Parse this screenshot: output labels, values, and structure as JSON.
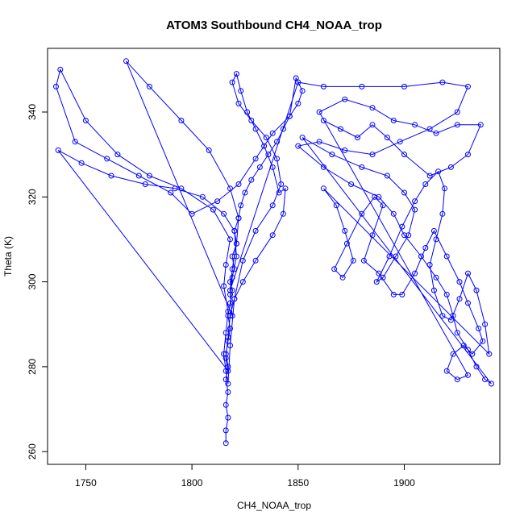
{
  "chart_data": {
    "type": "line",
    "title": "ATOM3 Southbound CH4_NOAA_trop",
    "xlabel": "CH4_NOAA_trop",
    "ylabel": "Theta (K)",
    "xlim": [
      1732,
      1945
    ],
    "ylim": [
      257,
      355
    ],
    "xticks": [
      1750,
      1800,
      1850,
      1900
    ],
    "yticks": [
      260,
      280,
      300,
      320,
      340
    ],
    "grid": false,
    "markers": "open-circle",
    "series_color": "#0000ff",
    "series": [
      {
        "points": [
          [
            1816,
            262
          ],
          [
            1816,
            265
          ],
          [
            1817,
            268
          ],
          [
            1816,
            271
          ],
          [
            1817,
            274
          ],
          [
            1816,
            277
          ],
          [
            1817,
            280
          ],
          [
            1816,
            283
          ],
          [
            1817,
            286
          ],
          [
            1818,
            289
          ],
          [
            1817,
            292
          ],
          [
            1818,
            295
          ],
          [
            1819,
            298
          ],
          [
            1818,
            300
          ],
          [
            1820,
            303
          ],
          [
            1819,
            306
          ],
          [
            1821,
            309
          ],
          [
            1820,
            312
          ],
          [
            1822,
            315
          ],
          [
            1823,
            318
          ],
          [
            1825,
            321
          ],
          [
            1828,
            324
          ],
          [
            1832,
            327
          ],
          [
            1836,
            330
          ],
          [
            1840,
            333
          ],
          [
            1843,
            336
          ],
          [
            1846,
            339
          ],
          [
            1850,
            342
          ],
          [
            1852,
            345
          ],
          [
            1849,
            348
          ],
          [
            1846,
            339
          ],
          [
            1838,
            335
          ],
          [
            1830,
            329
          ],
          [
            1822,
            323
          ],
          [
            1812,
            319
          ],
          [
            1800,
            316
          ],
          [
            1790,
            321
          ],
          [
            1775,
            325
          ],
          [
            1760,
            329
          ],
          [
            1745,
            333
          ],
          [
            1736,
            346
          ],
          [
            1738,
            350
          ],
          [
            1750,
            338
          ],
          [
            1765,
            330
          ],
          [
            1780,
            325
          ],
          [
            1795,
            322
          ],
          [
            1810,
            317
          ],
          [
            1818,
            310
          ],
          [
            1816,
            304
          ],
          [
            1815,
            299
          ],
          [
            1817,
            293
          ],
          [
            1816,
            288
          ],
          [
            1815,
            283
          ],
          [
            1816,
            279
          ],
          [
            1817,
            276
          ],
          [
            1818,
            285
          ],
          [
            1820,
            296
          ],
          [
            1824,
            305
          ],
          [
            1830,
            312
          ],
          [
            1838,
            318
          ],
          [
            1842,
            323
          ],
          [
            1840,
            329
          ],
          [
            1835,
            334
          ],
          [
            1828,
            338
          ],
          [
            1822,
            342
          ],
          [
            1819,
            347
          ],
          [
            1821,
            349
          ],
          [
            1823,
            345
          ],
          [
            1826,
            340
          ],
          [
            1830,
            336
          ],
          [
            1834,
            332
          ],
          [
            1838,
            327
          ],
          [
            1841,
            321
          ],
          [
            1844,
            322
          ],
          [
            1843,
            316
          ],
          [
            1838,
            311
          ],
          [
            1830,
            305
          ],
          [
            1824,
            300
          ],
          [
            1820,
            296
          ],
          [
            1818,
            292
          ],
          [
            1817,
            287
          ],
          [
            1816,
            282
          ],
          [
            1817,
            279
          ],
          [
            1737,
            331
          ],
          [
            1748,
            328
          ],
          [
            1762,
            325
          ],
          [
            1778,
            323
          ],
          [
            1792,
            322
          ],
          [
            1805,
            320
          ],
          [
            1815,
            316
          ],
          [
            1820,
            312
          ],
          [
            1821,
            306
          ],
          [
            1819,
            301
          ],
          [
            1818,
            297
          ],
          [
            1819,
            292
          ],
          [
            1769,
            352
          ],
          [
            1780,
            346
          ],
          [
            1795,
            338
          ],
          [
            1808,
            331
          ],
          [
            1818,
            322
          ],
          [
            1822,
            315
          ],
          [
            1821,
            309
          ],
          [
            1819,
            303
          ],
          [
            1818,
            298
          ],
          [
            1850,
            347
          ],
          [
            1862,
            346
          ],
          [
            1880,
            346
          ],
          [
            1900,
            346
          ],
          [
            1918,
            347
          ],
          [
            1930,
            346
          ],
          [
            1925,
            340
          ],
          [
            1912,
            336
          ],
          [
            1898,
            333
          ],
          [
            1885,
            330
          ],
          [
            1872,
            331
          ],
          [
            1860,
            333
          ],
          [
            1850,
            332
          ],
          [
            1862,
            327
          ],
          [
            1875,
            323
          ],
          [
            1888,
            320
          ],
          [
            1895,
            316
          ],
          [
            1900,
            311
          ],
          [
            1908,
            306
          ],
          [
            1915,
            301
          ],
          [
            1920,
            297
          ],
          [
            1923,
            292
          ],
          [
            1925,
            288
          ],
          [
            1930,
            284
          ],
          [
            1934,
            280
          ],
          [
            1938,
            277
          ],
          [
            1941,
            276
          ],
          [
            1852,
            334
          ],
          [
            1866,
            330
          ],
          [
            1880,
            327
          ],
          [
            1892,
            325
          ],
          [
            1900,
            321
          ],
          [
            1905,
            317
          ],
          [
            1902,
            311
          ],
          [
            1896,
            306
          ],
          [
            1890,
            301
          ],
          [
            1887,
            300
          ],
          [
            1893,
            306
          ],
          [
            1899,
            313
          ],
          [
            1905,
            319
          ],
          [
            1910,
            323
          ],
          [
            1916,
            326
          ],
          [
            1919,
            322
          ],
          [
            1918,
            316
          ],
          [
            1915,
            310
          ],
          [
            1912,
            304
          ],
          [
            1914,
            298
          ],
          [
            1918,
            292
          ],
          [
            1922,
            291
          ],
          [
            1926,
            296
          ],
          [
            1930,
            302
          ],
          [
            1934,
            298
          ],
          [
            1938,
            290
          ],
          [
            1940,
            283
          ],
          [
            1862,
            322
          ],
          [
            1868,
            318
          ],
          [
            1872,
            312
          ],
          [
            1876,
            305
          ],
          [
            1871,
            301
          ],
          [
            1867,
            303
          ],
          [
            1873,
            309
          ],
          [
            1880,
            316
          ],
          [
            1886,
            320
          ],
          [
            1890,
            318
          ],
          [
            1885,
            311
          ],
          [
            1881,
            305
          ],
          [
            1888,
            302
          ],
          [
            1895,
            297
          ],
          [
            1899,
            297
          ],
          [
            1905,
            302
          ],
          [
            1910,
            308
          ],
          [
            1914,
            312
          ],
          [
            1920,
            306
          ],
          [
            1926,
            300
          ],
          [
            1930,
            295
          ],
          [
            1935,
            289
          ],
          [
            1937,
            286
          ],
          [
            1932,
            283
          ],
          [
            1928,
            285
          ],
          [
            1923,
            283
          ],
          [
            1920,
            279
          ],
          [
            1925,
            277
          ],
          [
            1930,
            278
          ],
          [
            1860,
            340
          ],
          [
            1872,
            343
          ],
          [
            1885,
            341
          ],
          [
            1895,
            338
          ],
          [
            1905,
            337
          ],
          [
            1915,
            335
          ],
          [
            1925,
            337
          ],
          [
            1936,
            337
          ],
          [
            1930,
            330
          ],
          [
            1922,
            327
          ],
          [
            1912,
            325
          ],
          [
            1900,
            330
          ],
          [
            1892,
            334
          ],
          [
            1885,
            337
          ],
          [
            1878,
            334
          ],
          [
            1870,
            336
          ],
          [
            1862,
            338
          ]
        ]
      }
    ]
  }
}
